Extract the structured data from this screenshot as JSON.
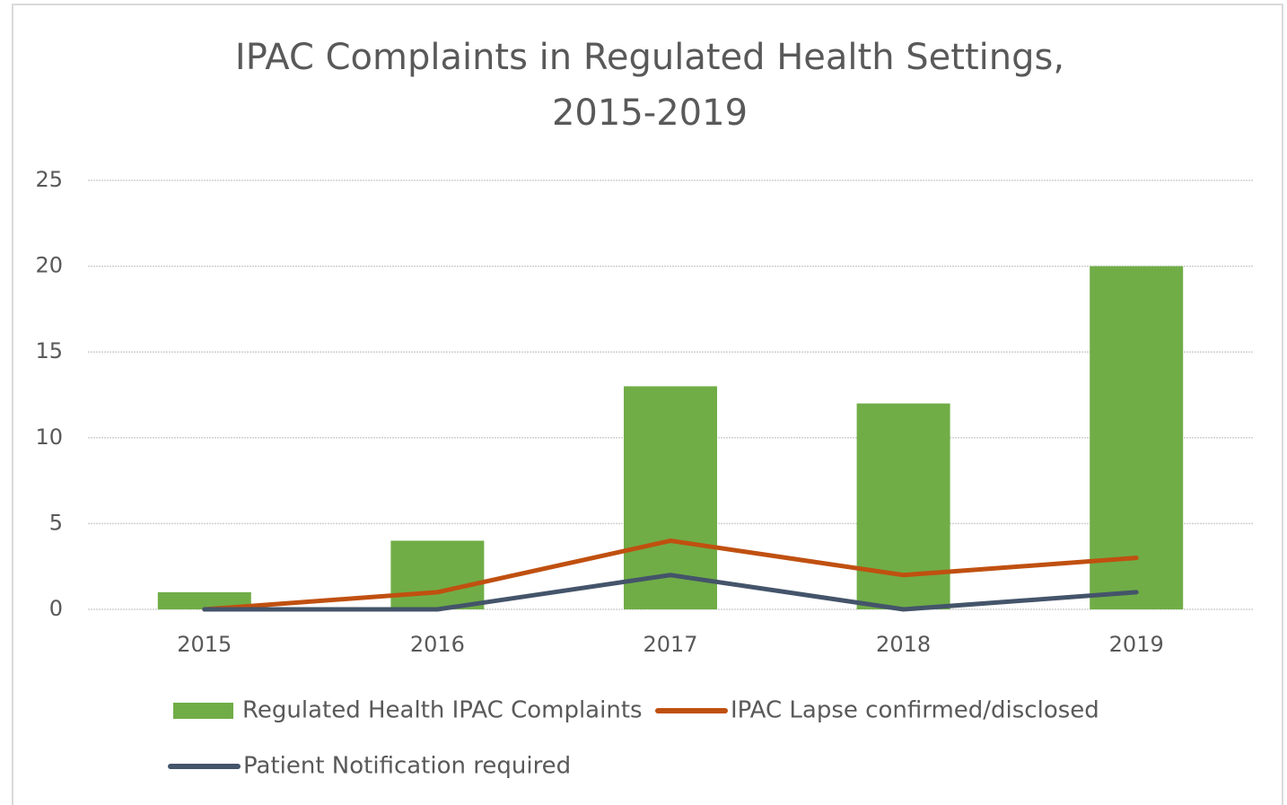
{
  "chart_data": {
    "type": "bar",
    "title": [
      "IPAC Complaints in Regulated Health Settings,",
      "2015-2019"
    ],
    "categories": [
      "2015",
      "2016",
      "2017",
      "2018",
      "2019"
    ],
    "series": [
      {
        "name": "Regulated Health IPAC Complaints",
        "type": "bar",
        "color": "#70ad47",
        "values": [
          1,
          4,
          13,
          12,
          20
        ]
      },
      {
        "name": "IPAC Lapse confirmed/disclosed",
        "type": "line",
        "color": "#c05010",
        "values": [
          0,
          1,
          4,
          2,
          3
        ]
      },
      {
        "name": "Patient Notification required",
        "type": "line",
        "color": "#44546a",
        "values": [
          0,
          0,
          2,
          0,
          1
        ]
      }
    ],
    "ylim": [
      0,
      25
    ],
    "yticks": [
      0,
      5,
      10,
      15,
      20,
      25
    ],
    "grid": true,
    "legend": "bottom"
  }
}
